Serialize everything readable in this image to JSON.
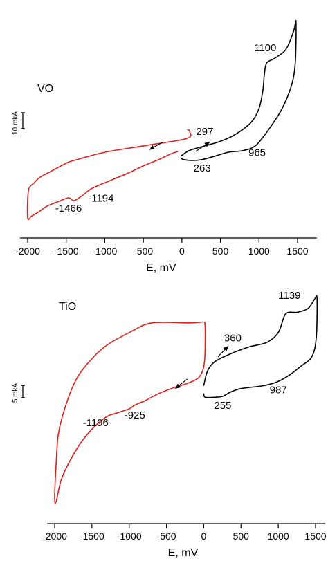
{
  "chart_data": [
    {
      "type": "line",
      "title": "VO",
      "xlabel": "E, mV",
      "ylabel": "",
      "xlim": [
        -2100,
        1750
      ],
      "x_ticks": [
        -2000,
        -1500,
        -1000,
        -500,
        0,
        500,
        1000,
        1500
      ],
      "grid": false,
      "legend": "none",
      "scale_bar": {
        "label": "10 mkA",
        "value_uA": 10
      },
      "colors": {
        "cathodic": "#e0201b",
        "anodic": "#000000"
      },
      "series": [
        {
          "color": "#e0201b",
          "points": [
            [
              70,
              97
            ],
            [
              100,
              95
            ],
            [
              60,
              87
            ],
            [
              -500,
              79
            ],
            [
              -1000,
              72
            ],
            [
              -1400,
              63
            ],
            [
              -1500,
              60
            ],
            [
              -1700,
              51
            ],
            [
              -1850,
              44
            ],
            [
              -1920,
              38
            ],
            [
              -1990,
              30
            ],
            [
              -2000,
              0
            ],
            [
              -1950,
              2
            ],
            [
              -1850,
              7
            ],
            [
              -1750,
              13
            ],
            [
              -1600,
              18
            ],
            [
              -1470,
              22
            ],
            [
              -1400,
              19
            ],
            [
              -1300,
              24
            ],
            [
              -1194,
              31
            ],
            [
              -1100,
              35
            ],
            [
              -900,
              42
            ],
            [
              -700,
              49
            ],
            [
              -500,
              57
            ],
            [
              -300,
              64
            ],
            [
              -150,
              70
            ],
            [
              -50,
              73
            ]
          ]
        },
        {
          "color": "#000000",
          "points": [
            [
              -10,
              68
            ],
            [
              100,
              74
            ],
            [
              297,
              79
            ],
            [
              500,
              84
            ],
            [
              700,
              92
            ],
            [
              900,
              105
            ],
            [
              1000,
              120
            ],
            [
              1050,
              140
            ],
            [
              1070,
              158
            ],
            [
              1100,
              170
            ],
            [
              1200,
              175
            ],
            [
              1350,
              185
            ],
            [
              1450,
              205
            ],
            [
              1480,
              215
            ],
            [
              1470,
              170
            ],
            [
              1420,
              145
            ],
            [
              1300,
              120
            ],
            [
              1150,
              100
            ],
            [
              965,
              80
            ],
            [
              800,
              74
            ],
            [
              600,
              72
            ],
            [
              400,
              67
            ],
            [
              263,
              64
            ],
            [
              150,
              63
            ],
            [
              20,
              64
            ],
            [
              -10,
              66
            ]
          ]
        }
      ],
      "annotations": [
        {
          "text": "1100",
          "x": 1080,
          "y": 183
        },
        {
          "text": "297",
          "x": 297,
          "y": 91
        },
        {
          "text": "965",
          "x": 975,
          "y": 68
        },
        {
          "text": "263",
          "x": 263,
          "y": 51
        },
        {
          "text": "-1194",
          "x": -1050,
          "y": 18
        },
        {
          "text": "-1466",
          "x": -1470,
          "y": 7
        }
      ]
    },
    {
      "type": "line",
      "title": "TiO",
      "xlabel": "E, mV",
      "ylabel": "",
      "xlim": [
        -2100,
        1750
      ],
      "x_ticks": [
        -2000,
        -1500,
        -1000,
        -500,
        0,
        500,
        1000,
        1500
      ],
      "grid": false,
      "legend": "none",
      "scale_bar": {
        "label": "5 mkA",
        "value_uA": 5
      },
      "colors": {
        "cathodic": "#e0201b",
        "anodic": "#000000"
      },
      "series": [
        {
          "color": "#e0201b",
          "points": [
            [
              -10,
              186
            ],
            [
              -200,
              185
            ],
            [
              -700,
              185
            ],
            [
              -1000,
              175
            ],
            [
              -1300,
              162
            ],
            [
              -1500,
              148
            ],
            [
              -1700,
              128
            ],
            [
              -1850,
              100
            ],
            [
              -1950,
              70
            ],
            [
              -1980,
              40
            ],
            [
              -2000,
              5
            ],
            [
              -1980,
              0
            ],
            [
              -1900,
              25
            ],
            [
              -1700,
              55
            ],
            [
              -1500,
              75
            ],
            [
              -1300,
              88
            ],
            [
              -1196,
              91
            ],
            [
              -1000,
              96
            ],
            [
              -925,
              100
            ],
            [
              -800,
              104
            ],
            [
              -600,
              112
            ],
            [
              -400,
              118
            ],
            [
              -200,
              123
            ],
            [
              -50,
              130
            ],
            [
              10,
              145
            ],
            [
              20,
              175
            ],
            [
              15,
              186
            ]
          ]
        },
        {
          "color": "#000000",
          "points": [
            [
              0,
              120
            ],
            [
              50,
              135
            ],
            [
              150,
              145
            ],
            [
              360,
              153
            ],
            [
              600,
              160
            ],
            [
              850,
              165
            ],
            [
              1000,
              175
            ],
            [
              1080,
              192
            ],
            [
              1139,
              196
            ],
            [
              1250,
              196
            ],
            [
              1400,
              200
            ],
            [
              1490,
              210
            ],
            [
              1520,
              210
            ],
            [
              1510,
              170
            ],
            [
              1450,
              150
            ],
            [
              1300,
              140
            ],
            [
              1150,
              131
            ],
            [
              987,
              124
            ],
            [
              800,
              120
            ],
            [
              500,
              117
            ],
            [
              350,
              113
            ],
            [
              255,
              109
            ],
            [
              150,
              108
            ],
            [
              20,
              108
            ],
            [
              0,
              112
            ]
          ]
        }
      ],
      "annotations": [
        {
          "text": "1139",
          "x": 1150,
          "y": 210
        },
        {
          "text": "360",
          "x": 390,
          "y": 166
        },
        {
          "text": "987",
          "x": 1000,
          "y": 112
        },
        {
          "text": "255",
          "x": 255,
          "y": 96
        },
        {
          "text": "-925",
          "x": -925,
          "y": 86
        },
        {
          "text": "-1196",
          "x": -1450,
          "y": 78
        }
      ]
    }
  ]
}
